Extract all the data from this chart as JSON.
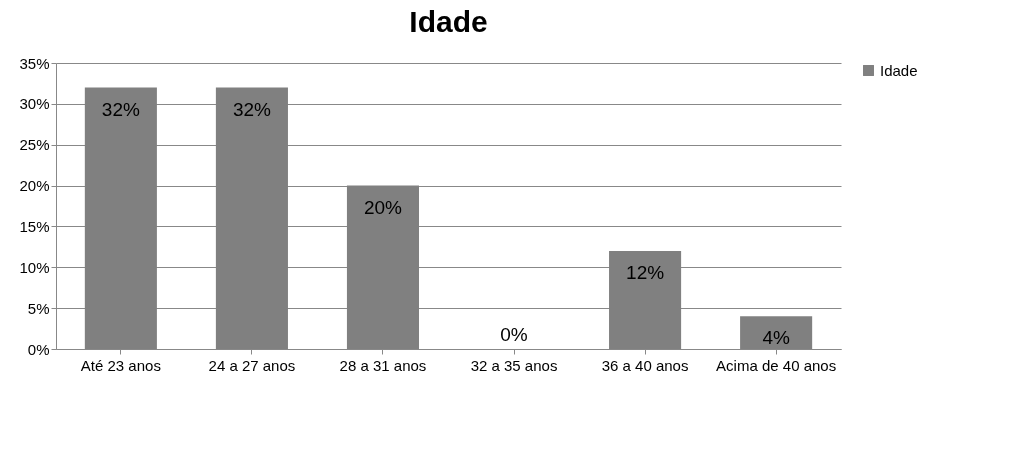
{
  "chart_data": {
    "type": "bar",
    "title": "Idade",
    "categories": [
      "Até 23 anos",
      "24 a 27 anos",
      "28 a 31 anos",
      "32 a 35 anos",
      "36 a 40 anos",
      "Acima de 40 anos"
    ],
    "series": [
      {
        "name": "Idade",
        "color": "#808080",
        "values": [
          32,
          32,
          20,
          0,
          12,
          4
        ],
        "value_labels": [
          "32%",
          "32%",
          "20%",
          "0%",
          "12%",
          "4%"
        ]
      }
    ],
    "ylim": [
      0,
      35
    ],
    "yticks": [
      {
        "value": 0,
        "label": "0%"
      },
      {
        "value": 5,
        "label": "5%"
      },
      {
        "value": 10,
        "label": "10%"
      },
      {
        "value": 15,
        "label": "15%"
      },
      {
        "value": 20,
        "label": "20%"
      },
      {
        "value": 25,
        "label": "25%"
      },
      {
        "value": 30,
        "label": "30%"
      },
      {
        "value": 35,
        "label": "35%"
      }
    ],
    "grid": "y",
    "legend": "right"
  }
}
